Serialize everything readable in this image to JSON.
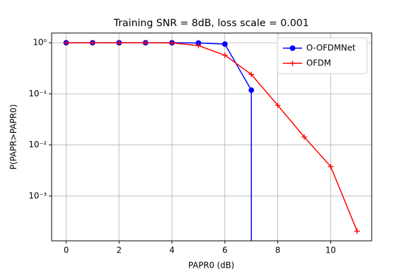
{
  "chart_data": {
    "type": "line",
    "title": "Training SNR = 8dB, loss scale = 0.001",
    "xlabel": "PAPR0 (dB)",
    "ylabel": "P(PAPR>PAPR0)",
    "xlim": [
      -0.55,
      11.55
    ],
    "xticks": [
      0,
      2,
      4,
      6,
      8,
      10
    ],
    "ylim": [
      0.000133,
      1.55
    ],
    "log_y": true,
    "yticks": [
      {
        "value": 1,
        "label": "10⁰"
      },
      {
        "value": 0.1,
        "label": "10⁻¹"
      },
      {
        "value": 0.01,
        "label": "10⁻²"
      },
      {
        "value": 0.001,
        "label": "10⁻³"
      }
    ],
    "grid": true,
    "legend": "upper right",
    "series": [
      {
        "name": "O-OFDMNet",
        "color": "#0000ff",
        "marker": "circle",
        "x": [
          0,
          1,
          2,
          3,
          4,
          5,
          6,
          7,
          7
        ],
        "values": [
          1,
          1,
          1,
          1,
          1,
          0.99,
          0.94,
          0.118,
          0
        ]
      },
      {
        "name": "OFDM",
        "color": "#ff0000",
        "marker": "plus",
        "x": [
          0,
          1,
          2,
          3,
          4,
          5,
          6,
          7,
          8,
          9,
          10,
          11
        ],
        "values": [
          1,
          1,
          1,
          1,
          0.99,
          0.88,
          0.57,
          0.24,
          0.0596,
          0.0143,
          0.00378,
          0.000205
        ]
      }
    ]
  }
}
